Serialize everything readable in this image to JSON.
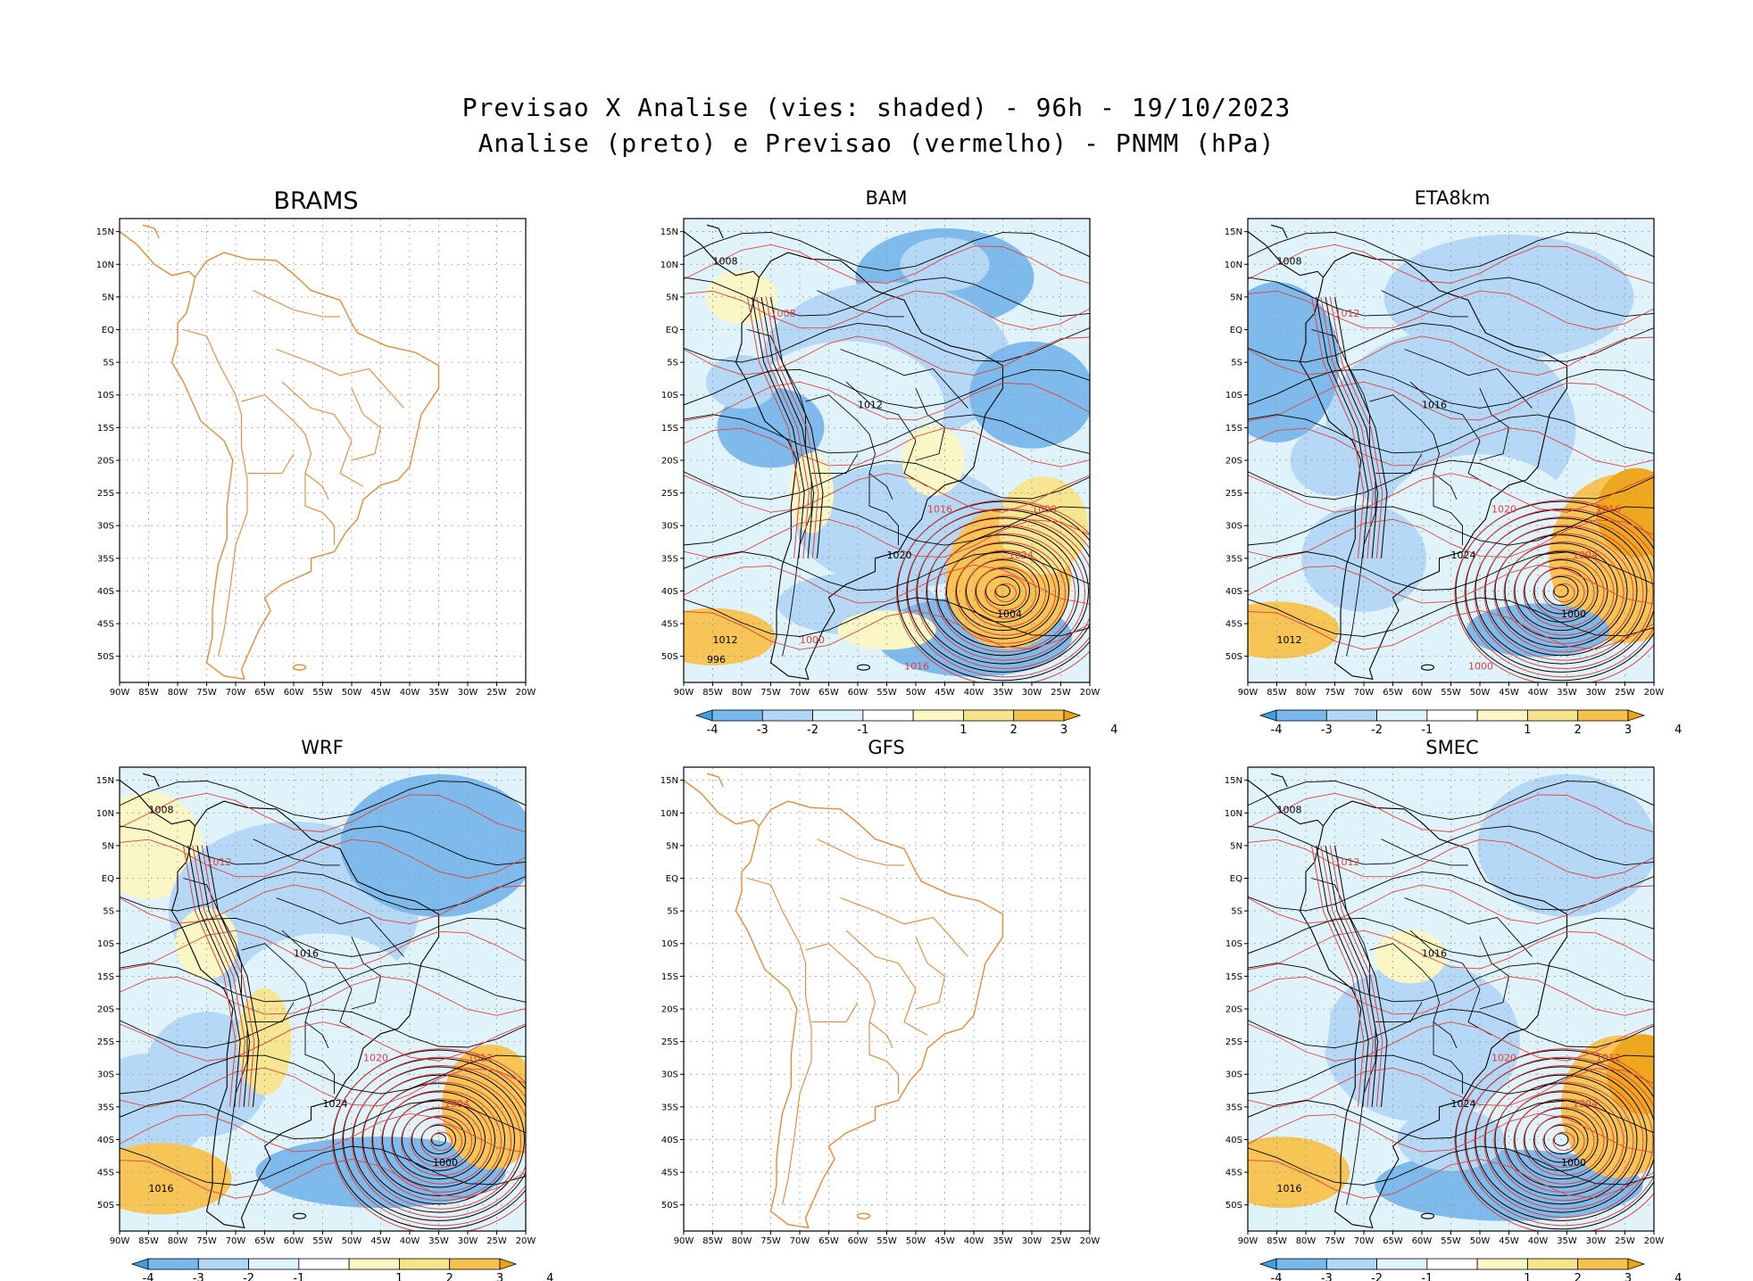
{
  "title": {
    "line1": "Previsao X Analise (vies: shaded) - 96h - 19/10/2023",
    "line2": "Analise (preto) e Previsao (vermelho) - PNMM (hPa)"
  },
  "axes": {
    "lat_labels": [
      "15N",
      "10N",
      "5N",
      "EQ",
      "5S",
      "10S",
      "15S",
      "20S",
      "25S",
      "30S",
      "35S",
      "40S",
      "45S",
      "50S"
    ],
    "lon_labels": [
      "90W",
      "85W",
      "80W",
      "75W",
      "70W",
      "65W",
      "60W",
      "55W",
      "50W",
      "45W",
      "40W",
      "35W",
      "30W",
      "25W",
      "20W"
    ]
  },
  "colorbar": {
    "labels": [
      "-4",
      "-3",
      "-2",
      "-1",
      "1",
      "2",
      "3",
      "4"
    ],
    "colors": [
      "#3d9fe3",
      "#78b8ec",
      "#b2d6f6",
      "#dff3fb",
      "#ffffff",
      "#fbf6c2",
      "#f6e48c",
      "#f6c24e",
      "#eea414"
    ]
  },
  "colors": {
    "map_outline": "#e88a3a",
    "analysis": "#000000",
    "forecast": "#e0413c"
  },
  "panels": [
    {
      "id": "brams",
      "label": "BRAMS",
      "has_data": false
    },
    {
      "id": "bam",
      "label": "BAM",
      "has_data": true,
      "contour_labels": [
        "1008",
        "1008",
        "1012",
        "1016",
        "1020",
        "1024",
        "1004",
        "1000",
        "1012",
        "1016",
        "996",
        "1000"
      ]
    },
    {
      "id": "eta8km",
      "label": "ETA8km",
      "has_data": true,
      "contour_labels": [
        "1008",
        "1012",
        "1016",
        "1020",
        "1024",
        "1004",
        "1000",
        "1016",
        "1012",
        "1000"
      ]
    },
    {
      "id": "wrf",
      "label": "WRF",
      "has_data": true,
      "contour_labels": [
        "1008",
        "1012",
        "1016",
        "1020",
        "1024",
        "1004",
        "1000",
        "1012",
        "1016"
      ]
    },
    {
      "id": "gfs",
      "label": "GFS",
      "has_data": false
    },
    {
      "id": "smec",
      "label": "SMEC",
      "has_data": true,
      "contour_labels": [
        "1008",
        "1012",
        "1016",
        "1020",
        "1024",
        "1004",
        "1000",
        "1012",
        "1016"
      ]
    }
  ]
}
